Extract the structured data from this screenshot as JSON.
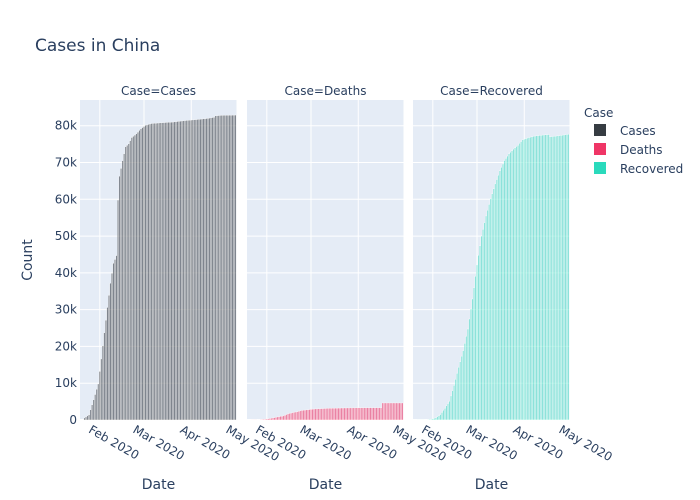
{
  "chart_data": {
    "type": "bar",
    "title": "Cases in China",
    "xlabel": "Date",
    "ylabel": "Count",
    "ylim": [
      0,
      87000
    ],
    "xlim": [
      "2020-01-19",
      "2020-05-01"
    ],
    "grid": true,
    "legend": {
      "title": "Case",
      "placement": "right",
      "entries": [
        "Cases",
        "Deaths",
        "Recovered"
      ]
    },
    "x_ticks": [
      "Feb 2020",
      "Mar 2020",
      "Apr 2020",
      "May 2020"
    ],
    "y_ticks": [
      "0",
      "10k",
      "20k",
      "30k",
      "40k",
      "50k",
      "60k",
      "70k",
      "80k"
    ],
    "start_date": "2020-01-22",
    "end_date": "2020-04-30",
    "panels": [
      {
        "label": "Case=Cases",
        "series": "Cases",
        "color": "#2b3138",
        "fill_opacity": 0.55,
        "points": [
          [
            "2020-01-22",
            550
          ],
          [
            "2020-01-25",
            1400
          ],
          [
            "2020-01-28",
            5500
          ],
          [
            "2020-01-31",
            9800
          ],
          [
            "2020-02-02",
            16600
          ],
          [
            "2020-02-04",
            23700
          ],
          [
            "2020-02-06",
            30600
          ],
          [
            "2020-02-08",
            37200
          ],
          [
            "2020-02-10",
            42600
          ],
          [
            "2020-02-12",
            44700
          ],
          [
            "2020-02-13",
            59800
          ],
          [
            "2020-02-14",
            66300
          ],
          [
            "2020-02-16",
            70500
          ],
          [
            "2020-02-18",
            74300
          ],
          [
            "2020-02-20",
            75100
          ],
          [
            "2020-02-22",
            76800
          ],
          [
            "2020-02-25",
            77800
          ],
          [
            "2020-02-28",
            79200
          ],
          [
            "2020-03-02",
            80100
          ],
          [
            "2020-03-06",
            80600
          ],
          [
            "2020-03-12",
            80800
          ],
          [
            "2020-03-20",
            81000
          ],
          [
            "2020-03-28",
            81400
          ],
          [
            "2020-04-05",
            81700
          ],
          [
            "2020-04-12",
            82000
          ],
          [
            "2020-04-16",
            82300
          ],
          [
            "2020-04-17",
            82700
          ],
          [
            "2020-04-20",
            82800
          ],
          [
            "2020-04-30",
            82900
          ]
        ]
      },
      {
        "label": "Case=Deaths",
        "series": "Deaths",
        "color": "#ee2a5e",
        "fill_opacity": 0.55,
        "points": [
          [
            "2020-01-22",
            17
          ],
          [
            "2020-01-25",
            42
          ],
          [
            "2020-01-28",
            131
          ],
          [
            "2020-01-31",
            213
          ],
          [
            "2020-02-03",
            425
          ],
          [
            "2020-02-06",
            636
          ],
          [
            "2020-02-09",
            908
          ],
          [
            "2020-02-12",
            1113
          ],
          [
            "2020-02-15",
            1665
          ],
          [
            "2020-02-18",
            2004
          ],
          [
            "2020-02-21",
            2247
          ],
          [
            "2020-02-24",
            2595
          ],
          [
            "2020-02-28",
            2790
          ],
          [
            "2020-03-03",
            2985
          ],
          [
            "2020-03-08",
            3097
          ],
          [
            "2020-03-15",
            3203
          ],
          [
            "2020-03-22",
            3261
          ],
          [
            "2020-03-31",
            3309
          ],
          [
            "2020-04-10",
            3339
          ],
          [
            "2020-04-16",
            3342
          ],
          [
            "2020-04-17",
            4632
          ],
          [
            "2020-04-30",
            4633
          ]
        ]
      },
      {
        "label": "Case=Recovered",
        "series": "Recovered",
        "color": "#1fd8b8",
        "fill_opacity": 0.45,
        "points": [
          [
            "2020-01-22",
            28
          ],
          [
            "2020-01-27",
            51
          ],
          [
            "2020-01-31",
            222
          ],
          [
            "2020-02-03",
            623
          ],
          [
            "2020-02-06",
            1477
          ],
          [
            "2020-02-09",
            3219
          ],
          [
            "2020-02-12",
            5113
          ],
          [
            "2020-02-15",
            9412
          ],
          [
            "2020-02-18",
            14352
          ],
          [
            "2020-02-21",
            18864
          ],
          [
            "2020-02-24",
            24734
          ],
          [
            "2020-02-27",
            32898
          ],
          [
            "2020-03-01",
            42162
          ],
          [
            "2020-03-04",
            50001
          ],
          [
            "2020-03-07",
            55478
          ],
          [
            "2020-03-10",
            60181
          ],
          [
            "2020-03-13",
            64196
          ],
          [
            "2020-03-16",
            67749
          ],
          [
            "2020-03-19",
            70535
          ],
          [
            "2020-03-22",
            72362
          ],
          [
            "2020-03-25",
            73650
          ],
          [
            "2020-03-28",
            74720
          ],
          [
            "2020-03-31",
            76197
          ],
          [
            "2020-04-04",
            76800
          ],
          [
            "2020-04-08",
            77200
          ],
          [
            "2020-04-14",
            77500
          ],
          [
            "2020-04-17",
            77600
          ],
          [
            "2020-04-18",
            77000
          ],
          [
            "2020-04-24",
            77300
          ],
          [
            "2020-04-30",
            77700
          ]
        ]
      }
    ]
  }
}
